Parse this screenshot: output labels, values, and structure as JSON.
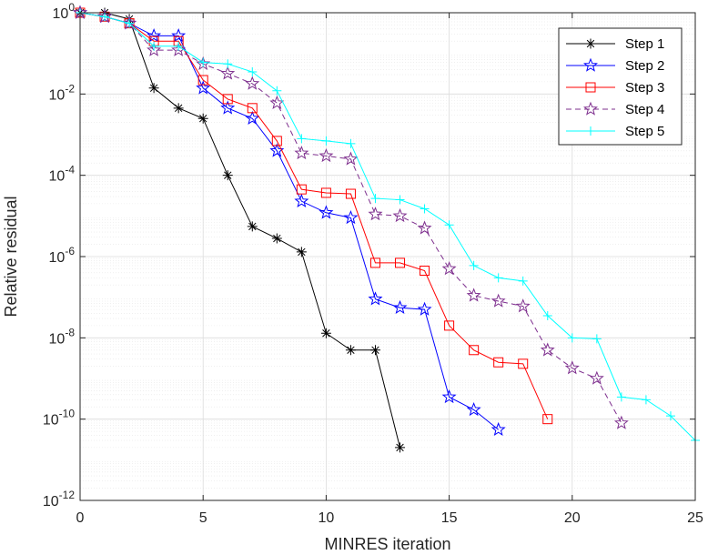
{
  "chart_data": {
    "type": "line",
    "title": "",
    "xlabel": "MINRES iteration",
    "ylabel": "Relative residual",
    "xlim": [
      0,
      25
    ],
    "ylim_log10": [
      -12,
      0
    ],
    "y_scale": "log",
    "grid": "major and minor",
    "legend_position": "top-right",
    "x_ticks": [
      0,
      5,
      10,
      15,
      20,
      25
    ],
    "x_tick_labels": [
      "0",
      "5",
      "10",
      "15",
      "20",
      "25"
    ],
    "y_ticks": [
      {
        "base": "10",
        "exp": "0",
        "value_log10": 0
      },
      {
        "base": "10",
        "exp": "-2",
        "value_log10": -2
      },
      {
        "base": "10",
        "exp": "-4",
        "value_log10": -4
      },
      {
        "base": "10",
        "exp": "-6",
        "value_log10": -6
      },
      {
        "base": "10",
        "exp": "-8",
        "value_log10": -8
      },
      {
        "base": "10",
        "exp": "-10",
        "value_log10": -10
      },
      {
        "base": "10",
        "exp": "-12",
        "value_log10": -12
      }
    ],
    "series": [
      {
        "name": "Step 1",
        "color": "#000000",
        "marker": "asterisk",
        "dash": "solid",
        "x": [
          0,
          1,
          2,
          3,
          4,
          5,
          6,
          7,
          8,
          9,
          10,
          11,
          12,
          13
        ],
        "values": [
          1,
          1,
          0.7,
          0.014,
          0.0045,
          0.0025,
          0.0001,
          5.5e-06,
          2.8e-06,
          1.3e-06,
          1.3e-08,
          5e-09,
          5e-09,
          2e-11
        ]
      },
      {
        "name": "Step 2",
        "color": "#0000ff",
        "marker": "star",
        "dash": "solid",
        "x": [
          0,
          1,
          2,
          3,
          4,
          5,
          6,
          7,
          8,
          9,
          10,
          11,
          12,
          13,
          14,
          15,
          16,
          17
        ],
        "values": [
          1,
          0.8,
          0.55,
          0.27,
          0.27,
          0.014,
          0.0045,
          0.0025,
          0.0004,
          2.3e-05,
          1.2e-05,
          9e-06,
          9e-08,
          5.5e-08,
          5e-08,
          3.5e-10,
          1.7e-10,
          5.5e-11
        ]
      },
      {
        "name": "Step 3",
        "color": "#ff0000",
        "marker": "square",
        "dash": "solid",
        "x": [
          0,
          1,
          2,
          3,
          4,
          5,
          6,
          7,
          8,
          9,
          10,
          11,
          12,
          13,
          14,
          15,
          16,
          17,
          18,
          19
        ],
        "values": [
          1,
          0.8,
          0.55,
          0.2,
          0.2,
          0.022,
          0.0075,
          0.0045,
          0.0007,
          4.5e-05,
          3.7e-05,
          3.5e-05,
          7e-07,
          7e-07,
          4.5e-07,
          2e-08,
          5e-09,
          2.5e-09,
          2.3e-09,
          1e-10
        ]
      },
      {
        "name": "Step 4",
        "color": "#7e2f8e",
        "marker": "star",
        "dash": "dashed",
        "x": [
          0,
          1,
          2,
          3,
          4,
          5,
          6,
          7,
          8,
          9,
          10,
          11,
          12,
          13,
          14,
          15,
          16,
          17,
          18,
          19,
          20,
          21,
          22
        ],
        "values": [
          1,
          0.8,
          0.55,
          0.12,
          0.12,
          0.055,
          0.032,
          0.018,
          0.006,
          0.00035,
          0.0003,
          0.00025,
          1.1e-05,
          1e-05,
          5e-06,
          5e-07,
          1.1e-07,
          8e-08,
          6e-08,
          5e-09,
          1.8e-09,
          1e-09,
          8e-11
        ]
      },
      {
        "name": "Step 5",
        "color": "#00ffff",
        "marker": "plus",
        "dash": "solid",
        "x": [
          0,
          1,
          2,
          3,
          4,
          5,
          6,
          7,
          8,
          9,
          10,
          11,
          12,
          13,
          14,
          15,
          16,
          17,
          18,
          19,
          20,
          21,
          22,
          23,
          24,
          25
        ],
        "values": [
          1,
          0.8,
          0.55,
          0.15,
          0.15,
          0.06,
          0.055,
          0.035,
          0.012,
          0.0008,
          0.0007,
          0.0006,
          2.7e-05,
          2.5e-05,
          1.5e-05,
          6e-06,
          6e-07,
          3e-07,
          2.5e-07,
          3.5e-08,
          1e-08,
          9.5e-09,
          3.5e-10,
          3e-10,
          1.2e-10,
          3e-11
        ]
      }
    ]
  }
}
